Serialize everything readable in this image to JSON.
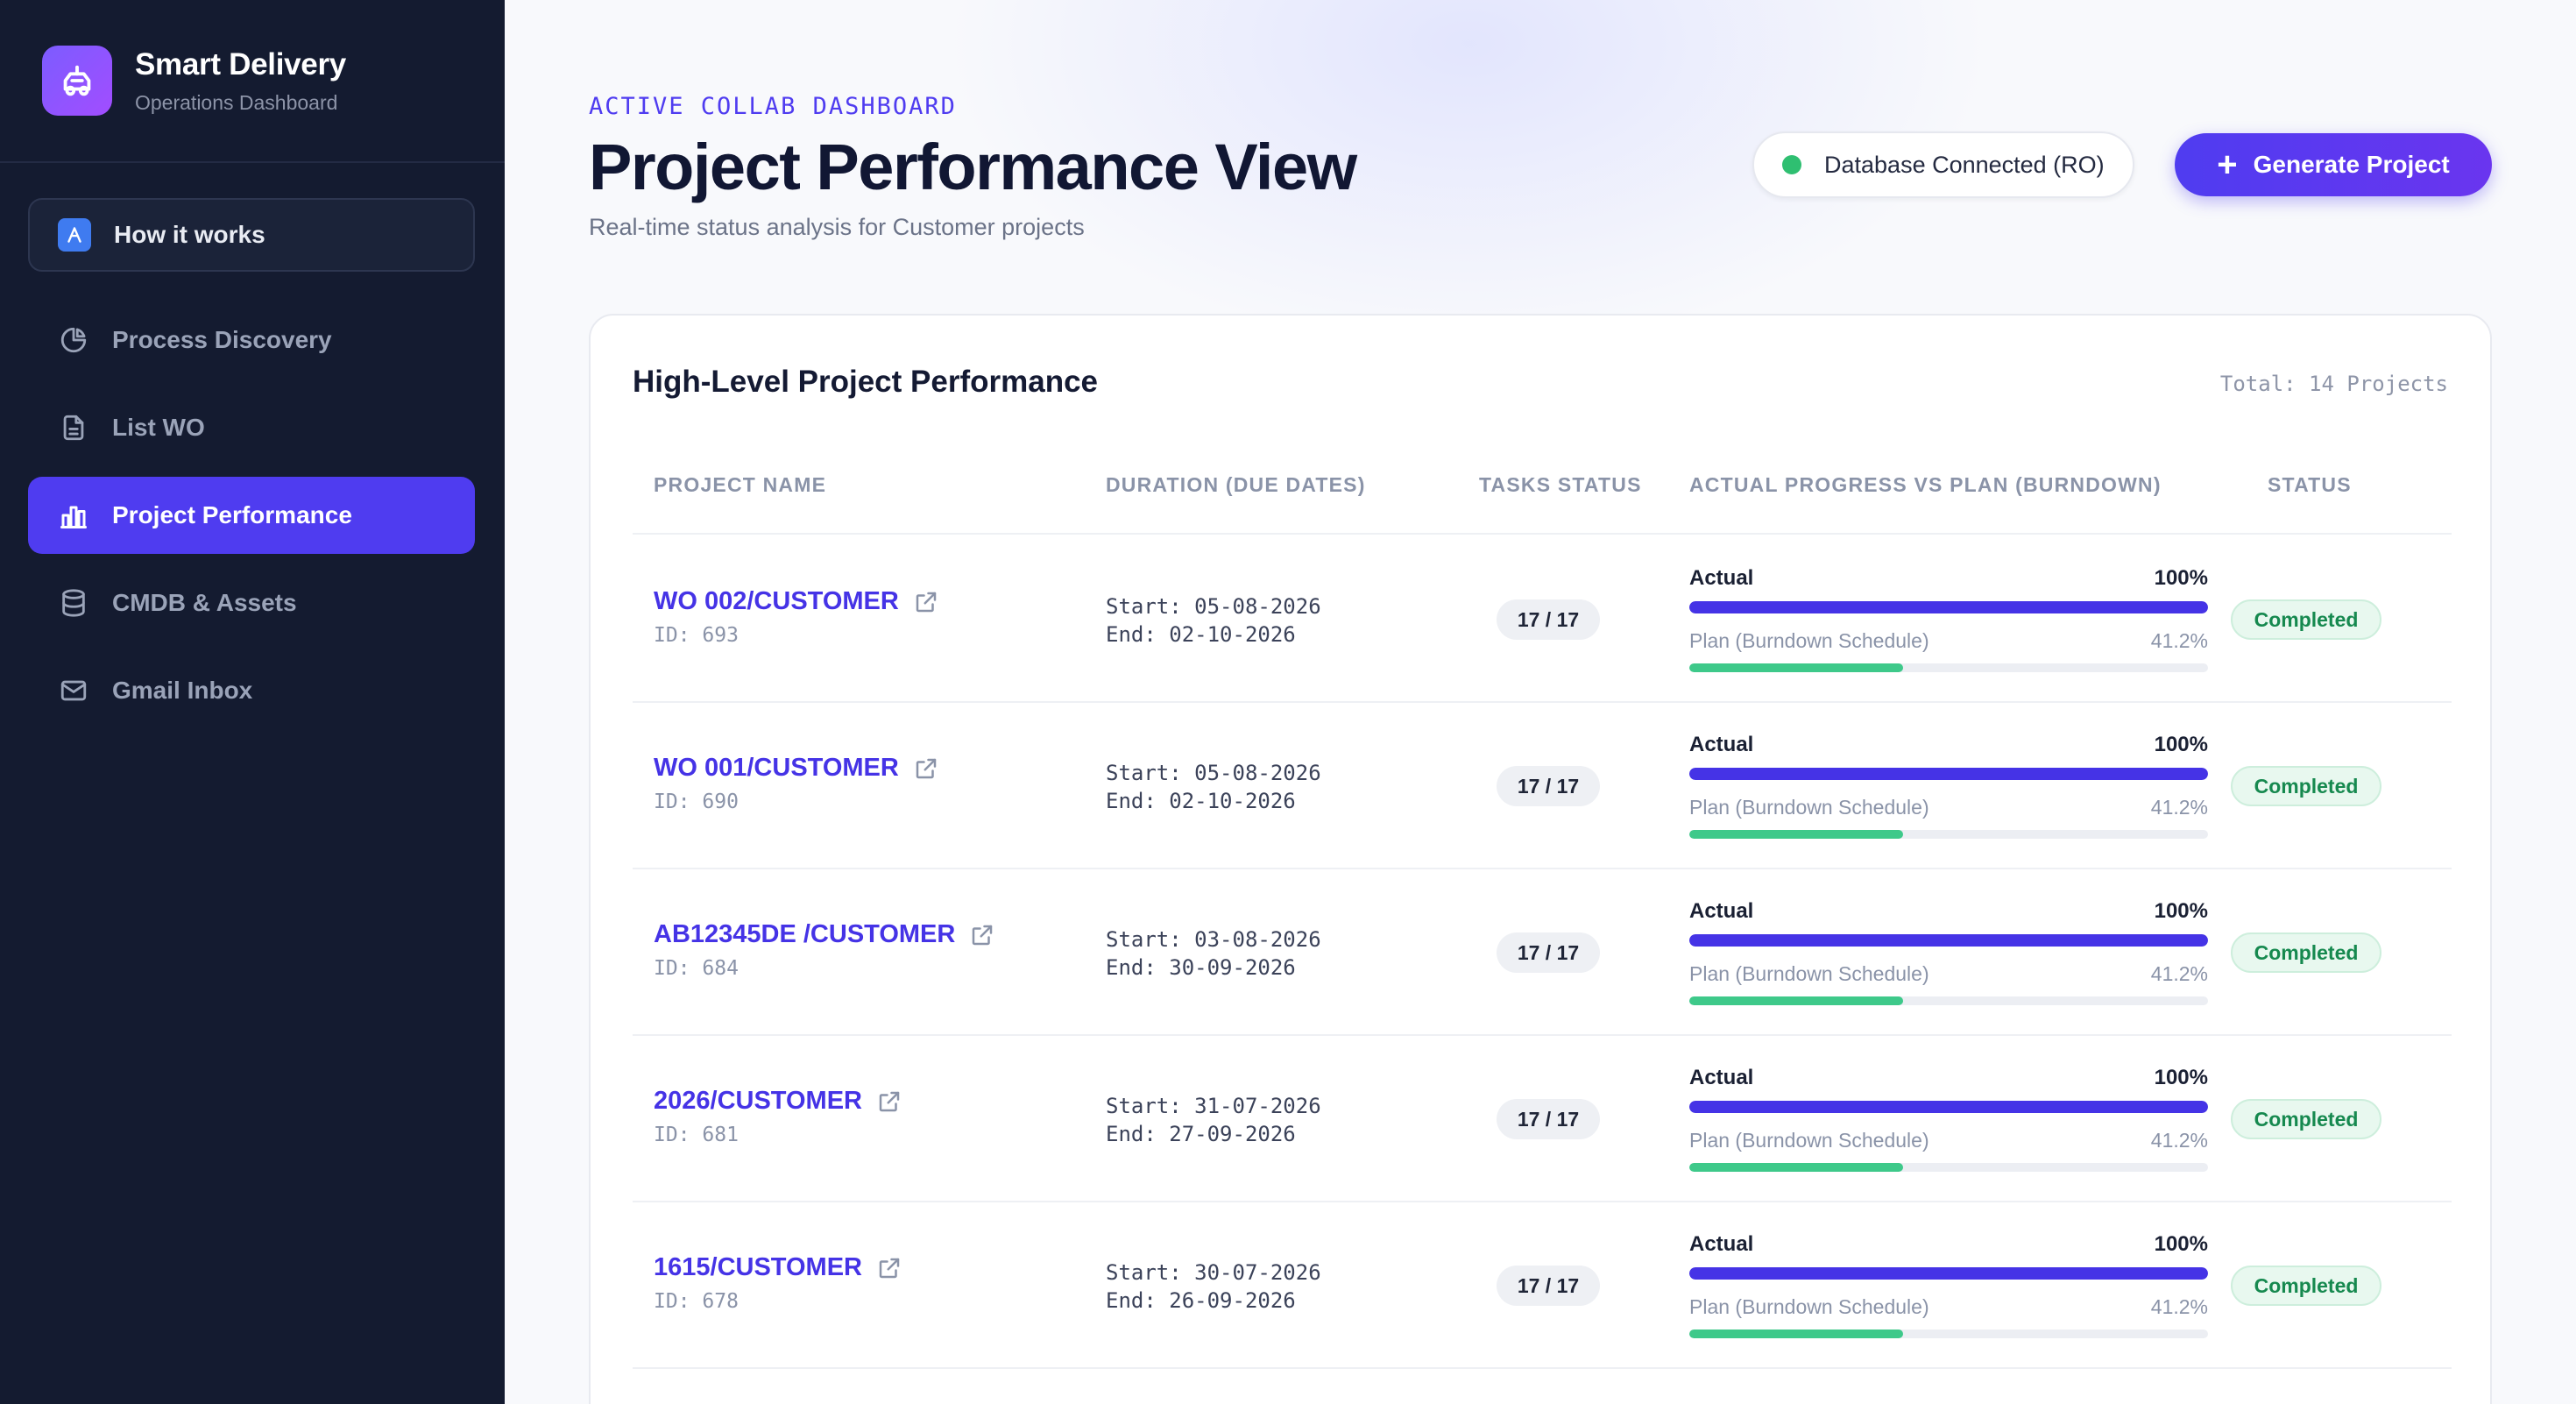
{
  "brand": {
    "title": "Smart Delivery",
    "subtitle": "Operations Dashboard",
    "logo_icon": "delivery-truck-icon"
  },
  "sidebar": {
    "how_it_works": {
      "label": "How it works",
      "icon": "compass-icon"
    },
    "items": [
      {
        "label": "Process Discovery",
        "icon": "pie-chart-icon",
        "active": false
      },
      {
        "label": "List WO",
        "icon": "document-icon",
        "active": false
      },
      {
        "label": "Project Performance",
        "icon": "bar-chart-icon",
        "active": true
      },
      {
        "label": "CMDB & Assets",
        "icon": "database-icon",
        "active": false
      },
      {
        "label": "Gmail Inbox",
        "icon": "mail-icon",
        "active": false
      }
    ]
  },
  "header": {
    "eyebrow": "ACTIVE COLLAB DASHBOARD",
    "title": "Project Performance View",
    "subtitle": "Real-time status analysis for Customer projects",
    "db_status": "Database Connected (RO)",
    "generate_label": "Generate Project"
  },
  "colors": {
    "accent": "#4f3cf0",
    "success": "#2fbf71",
    "plan_bar": "#3ec98a",
    "sidebar_bg": "#141b30"
  },
  "table": {
    "title": "High-Level Project Performance",
    "total": "Total: 14 Projects",
    "columns": [
      "PROJECT NAME",
      "DURATION (DUE DATES)",
      "TASKS STATUS",
      "ACTUAL PROGRESS VS PLAN (BURNDOWN)",
      "STATUS"
    ],
    "actual_label": "Actual",
    "plan_label": "Plan (Burndown Schedule)",
    "rows": [
      {
        "name": "WO 002/CUSTOMER",
        "id": "ID: 693",
        "start": "Start: 05-08-2026",
        "end": "End: 02-10-2026",
        "tasks": "17 / 17",
        "actual": "100%",
        "actual_fraction": 1.0,
        "plan": "41.2%",
        "plan_fraction": 0.412,
        "status": "Completed"
      },
      {
        "name": "WO 001/CUSTOMER",
        "id": "ID: 690",
        "start": "Start: 05-08-2026",
        "end": "End: 02-10-2026",
        "tasks": "17 / 17",
        "actual": "100%",
        "actual_fraction": 1.0,
        "plan": "41.2%",
        "plan_fraction": 0.412,
        "status": "Completed"
      },
      {
        "name": "AB12345DE /CUSTOMER",
        "id": "ID: 684",
        "start": "Start: 03-08-2026",
        "end": "End: 30-09-2026",
        "tasks": "17 / 17",
        "actual": "100%",
        "actual_fraction": 1.0,
        "plan": "41.2%",
        "plan_fraction": 0.412,
        "status": "Completed"
      },
      {
        "name": "2026/CUSTOMER",
        "id": "ID: 681",
        "start": "Start: 31-07-2026",
        "end": "End: 27-09-2026",
        "tasks": "17 / 17",
        "actual": "100%",
        "actual_fraction": 1.0,
        "plan": "41.2%",
        "plan_fraction": 0.412,
        "status": "Completed"
      },
      {
        "name": "1615/CUSTOMER",
        "id": "ID: 678",
        "start": "Start: 30-07-2026",
        "end": "End: 26-09-2026",
        "tasks": "17 / 17",
        "actual": "100%",
        "actual_fraction": 1.0,
        "plan": "41.2%",
        "plan_fraction": 0.412,
        "status": "Completed"
      }
    ]
  }
}
